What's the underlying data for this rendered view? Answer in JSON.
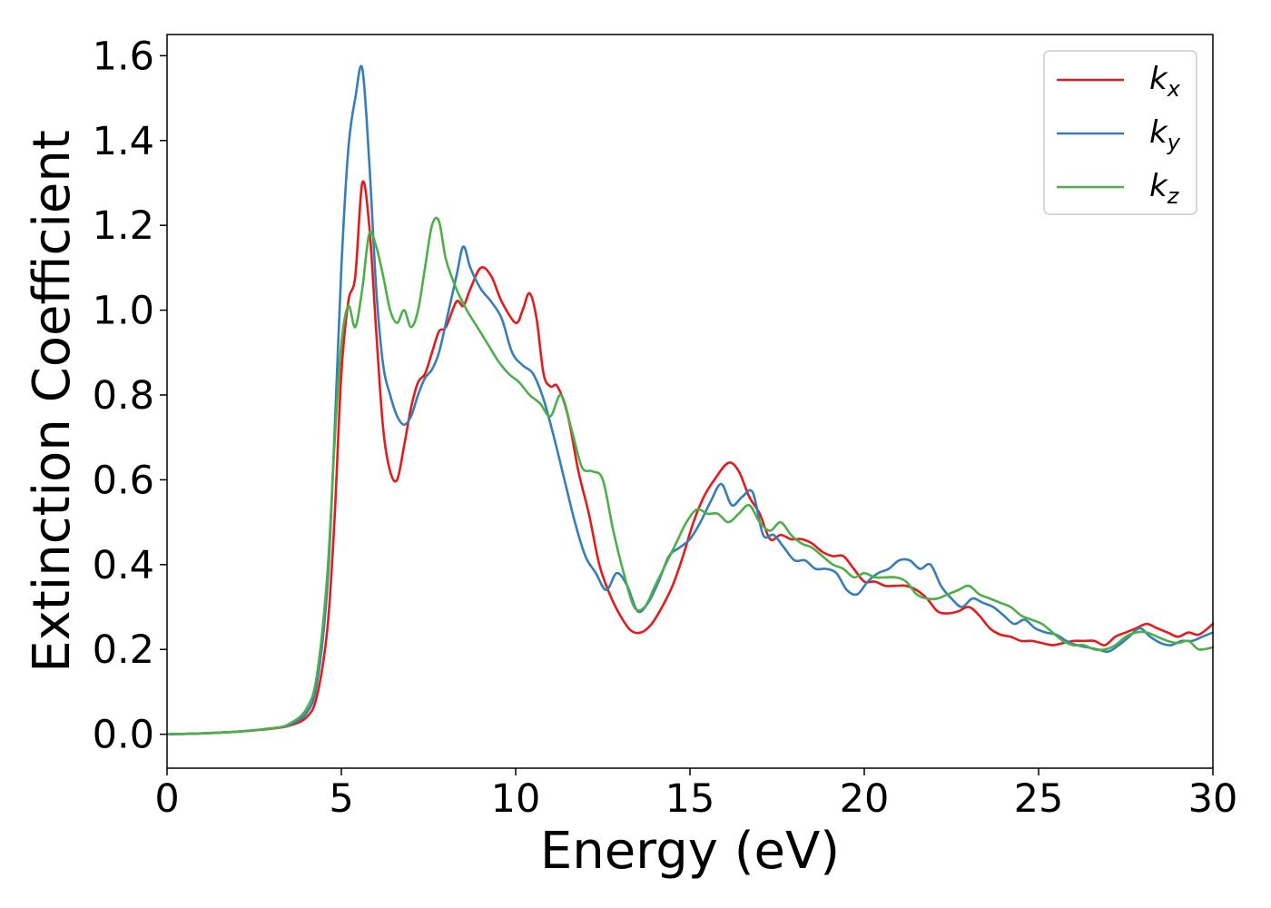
{
  "chart_data": {
    "type": "line",
    "xlabel": "Energy (eV)",
    "ylabel": "Extinction Coefficient",
    "xlim": [
      0,
      30
    ],
    "ylim": [
      -0.08,
      1.65
    ],
    "xticks": [
      0,
      5,
      10,
      15,
      20,
      25,
      30
    ],
    "xtick_labels": [
      "0",
      "5",
      "10",
      "15",
      "20",
      "25",
      "30"
    ],
    "yticks": [
      0.0,
      0.2,
      0.4,
      0.6,
      0.8,
      1.0,
      1.2,
      1.4,
      1.6
    ],
    "ytick_labels": [
      "0.0",
      "0.2",
      "0.4",
      "0.6",
      "0.8",
      "1.0",
      "1.2",
      "1.4",
      "1.6"
    ],
    "grid": false,
    "legend_position": "top-right",
    "series": [
      {
        "name": "k",
        "subscript": "x",
        "color": "#e41a1c",
        "x": [
          0,
          1,
          2,
          3,
          3.5,
          4,
          4.3,
          4.6,
          4.8,
          5.0,
          5.2,
          5.4,
          5.6,
          5.8,
          6.0,
          6.2,
          6.4,
          6.6,
          6.8,
          7.0,
          7.2,
          7.4,
          7.6,
          7.8,
          8.0,
          8.3,
          8.5,
          8.7,
          9.0,
          9.3,
          9.6,
          10.0,
          10.2,
          10.4,
          10.6,
          10.8,
          11.0,
          11.2,
          11.5,
          11.8,
          12.1,
          12.4,
          12.7,
          13.0,
          13.3,
          13.6,
          13.9,
          14.2,
          14.5,
          14.8,
          15.1,
          15.4,
          15.7,
          16.1,
          16.4,
          16.7,
          17.0,
          17.3,
          17.6,
          17.9,
          18.2,
          18.5,
          18.8,
          19.1,
          19.4,
          19.7,
          20.0,
          20.3,
          20.6,
          20.9,
          21.2,
          21.5,
          21.8,
          22.1,
          22.4,
          22.7,
          23.0,
          23.3,
          23.6,
          23.9,
          24.2,
          24.5,
          24.8,
          25.1,
          25.4,
          25.7,
          26.0,
          26.3,
          26.6,
          26.9,
          27.2,
          27.5,
          27.8,
          28.1,
          28.4,
          28.7,
          29.0,
          29.3,
          29.6,
          30.0
        ],
        "y": [
          0.0,
          0.002,
          0.006,
          0.013,
          0.02,
          0.04,
          0.09,
          0.25,
          0.5,
          0.85,
          1.02,
          1.08,
          1.3,
          1.2,
          0.95,
          0.72,
          0.62,
          0.6,
          0.68,
          0.77,
          0.83,
          0.85,
          0.9,
          0.95,
          0.96,
          1.02,
          1.01,
          1.05,
          1.1,
          1.08,
          1.02,
          0.97,
          1.0,
          1.04,
          0.98,
          0.85,
          0.82,
          0.82,
          0.75,
          0.62,
          0.52,
          0.4,
          0.33,
          0.28,
          0.245,
          0.24,
          0.26,
          0.3,
          0.35,
          0.42,
          0.5,
          0.56,
          0.6,
          0.64,
          0.62,
          0.56,
          0.52,
          0.46,
          0.47,
          0.46,
          0.46,
          0.45,
          0.43,
          0.42,
          0.42,
          0.39,
          0.36,
          0.36,
          0.35,
          0.35,
          0.35,
          0.34,
          0.32,
          0.29,
          0.285,
          0.29,
          0.3,
          0.28,
          0.25,
          0.235,
          0.23,
          0.22,
          0.22,
          0.215,
          0.21,
          0.215,
          0.22,
          0.22,
          0.22,
          0.21,
          0.23,
          0.24,
          0.25,
          0.26,
          0.25,
          0.24,
          0.23,
          0.24,
          0.235,
          0.26
        ]
      },
      {
        "name": "k",
        "subscript": "y",
        "color": "#377eb8",
        "x": [
          0,
          1,
          2,
          3,
          3.5,
          4,
          4.3,
          4.6,
          4.8,
          5.0,
          5.2,
          5.4,
          5.6,
          5.8,
          6.0,
          6.2,
          6.4,
          6.6,
          6.8,
          7.0,
          7.2,
          7.4,
          7.6,
          7.8,
          8.0,
          8.3,
          8.5,
          8.7,
          9.0,
          9.3,
          9.6,
          9.9,
          10.2,
          10.5,
          10.8,
          11.1,
          11.4,
          11.7,
          12.0,
          12.3,
          12.6,
          12.9,
          13.2,
          13.5,
          13.8,
          14.1,
          14.4,
          14.7,
          15.0,
          15.3,
          15.6,
          15.9,
          16.2,
          16.5,
          16.8,
          17.1,
          17.4,
          17.7,
          18.0,
          18.3,
          18.6,
          18.9,
          19.2,
          19.5,
          19.8,
          20.1,
          20.4,
          20.7,
          21.0,
          21.3,
          21.6,
          21.9,
          22.2,
          22.5,
          22.8,
          23.1,
          23.4,
          23.7,
          24.0,
          24.3,
          24.6,
          24.9,
          25.2,
          25.5,
          25.8,
          26.1,
          26.4,
          26.7,
          27.0,
          27.3,
          27.6,
          27.9,
          28.2,
          28.5,
          28.8,
          29.1,
          29.4,
          29.7,
          30.0
        ],
        "y": [
          0.0,
          0.002,
          0.006,
          0.014,
          0.022,
          0.05,
          0.12,
          0.35,
          0.7,
          1.1,
          1.38,
          1.5,
          1.57,
          1.35,
          1.05,
          0.87,
          0.8,
          0.75,
          0.73,
          0.75,
          0.8,
          0.84,
          0.86,
          0.9,
          0.97,
          1.08,
          1.15,
          1.1,
          1.05,
          1.02,
          0.98,
          0.9,
          0.87,
          0.85,
          0.79,
          0.7,
          0.6,
          0.5,
          0.42,
          0.38,
          0.34,
          0.38,
          0.35,
          0.29,
          0.31,
          0.36,
          0.42,
          0.44,
          0.46,
          0.5,
          0.55,
          0.59,
          0.54,
          0.56,
          0.57,
          0.47,
          0.47,
          0.44,
          0.41,
          0.41,
          0.39,
          0.39,
          0.38,
          0.34,
          0.33,
          0.36,
          0.38,
          0.39,
          0.41,
          0.41,
          0.39,
          0.4,
          0.35,
          0.32,
          0.3,
          0.32,
          0.31,
          0.3,
          0.28,
          0.26,
          0.27,
          0.25,
          0.24,
          0.235,
          0.22,
          0.21,
          0.205,
          0.2,
          0.195,
          0.21,
          0.23,
          0.25,
          0.23,
          0.215,
          0.21,
          0.22,
          0.22,
          0.23,
          0.24
        ]
      },
      {
        "name": "k",
        "subscript": "z",
        "color": "#4daf4a",
        "x": [
          0,
          1,
          2,
          3,
          3.5,
          4,
          4.3,
          4.6,
          4.8,
          5.0,
          5.2,
          5.4,
          5.6,
          5.8,
          6.0,
          6.2,
          6.4,
          6.6,
          6.8,
          7.0,
          7.2,
          7.4,
          7.6,
          7.8,
          8.0,
          8.3,
          8.6,
          8.9,
          9.2,
          9.5,
          9.8,
          10.1,
          10.4,
          10.7,
          11.0,
          11.3,
          11.6,
          11.9,
          12.2,
          12.5,
          12.8,
          13.1,
          13.4,
          13.7,
          14.0,
          14.3,
          14.6,
          14.9,
          15.2,
          15.5,
          15.8,
          16.1,
          16.4,
          16.7,
          17.0,
          17.3,
          17.6,
          17.9,
          18.2,
          18.5,
          18.8,
          19.1,
          19.4,
          19.7,
          20.0,
          20.3,
          20.6,
          20.9,
          21.2,
          21.5,
          21.8,
          22.1,
          22.4,
          22.7,
          23.0,
          23.3,
          23.6,
          23.9,
          24.2,
          24.5,
          24.8,
          25.1,
          25.4,
          25.7,
          26.0,
          26.3,
          26.6,
          26.9,
          27.2,
          27.5,
          27.8,
          28.1,
          28.4,
          28.7,
          29.0,
          29.3,
          29.6,
          30.0
        ],
        "y": [
          0.0,
          0.002,
          0.006,
          0.014,
          0.024,
          0.06,
          0.14,
          0.38,
          0.68,
          0.92,
          1.01,
          0.96,
          1.05,
          1.18,
          1.15,
          1.08,
          1.0,
          0.97,
          1.0,
          0.96,
          1.0,
          1.1,
          1.2,
          1.21,
          1.12,
          1.05,
          1.0,
          0.96,
          0.92,
          0.88,
          0.85,
          0.83,
          0.8,
          0.78,
          0.75,
          0.8,
          0.72,
          0.63,
          0.62,
          0.6,
          0.48,
          0.38,
          0.3,
          0.3,
          0.35,
          0.4,
          0.45,
          0.5,
          0.53,
          0.52,
          0.52,
          0.5,
          0.52,
          0.54,
          0.5,
          0.48,
          0.5,
          0.47,
          0.45,
          0.44,
          0.42,
          0.4,
          0.39,
          0.37,
          0.38,
          0.37,
          0.37,
          0.37,
          0.36,
          0.33,
          0.32,
          0.32,
          0.33,
          0.34,
          0.35,
          0.33,
          0.32,
          0.31,
          0.3,
          0.28,
          0.27,
          0.26,
          0.24,
          0.22,
          0.21,
          0.21,
          0.2,
          0.2,
          0.21,
          0.23,
          0.24,
          0.24,
          0.23,
          0.22,
          0.215,
          0.22,
          0.2,
          0.205
        ]
      }
    ]
  }
}
